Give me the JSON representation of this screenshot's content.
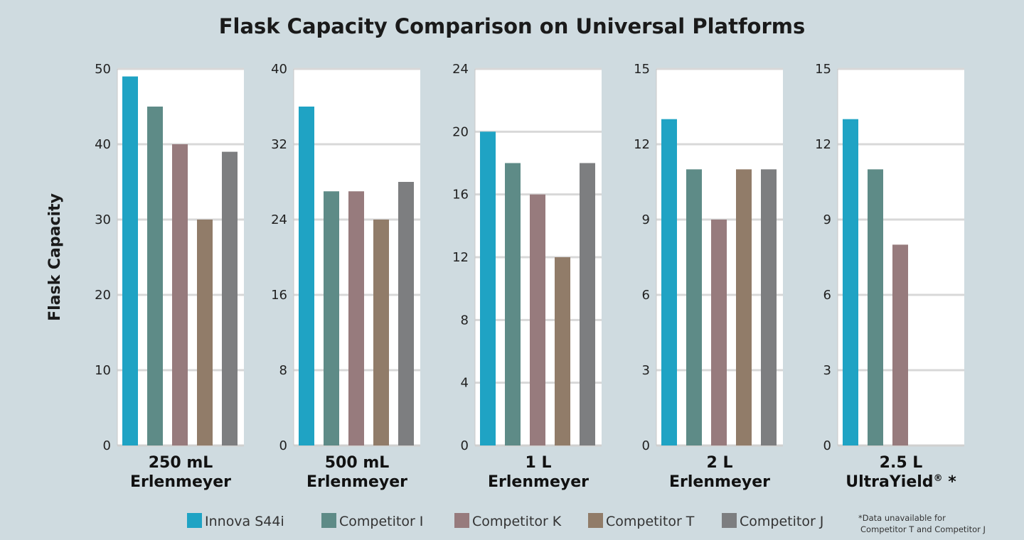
{
  "chart_data": {
    "type": "bar",
    "title": "Flask Capacity Comparison on Universal Platforms",
    "ylabel": "Flask Capacity",
    "series_names": [
      "Innova S44i",
      "Competitor I",
      "Competitor K",
      "Competitor T",
      "Competitor J"
    ],
    "colors": [
      "#1fa3c4",
      "#5e8b87",
      "#977b7d",
      "#917c69",
      "#7d7e80"
    ],
    "panels": [
      {
        "category_line1": "250 mL",
        "category_line2": "Erlenmeyer",
        "ylim": [
          0,
          50
        ],
        "ticks": [
          "0",
          "10",
          "20",
          "30",
          "40",
          "50"
        ],
        "values": [
          49,
          45,
          40,
          30,
          39
        ]
      },
      {
        "category_line1": "500 mL",
        "category_line2": "Erlenmeyer",
        "ylim": [
          0,
          40
        ],
        "ticks": [
          "0",
          "8",
          "16",
          "24",
          "32",
          "40"
        ],
        "values": [
          36,
          27,
          27,
          24,
          28
        ]
      },
      {
        "category_line1": "1 L",
        "category_line2": "Erlenmeyer",
        "ylim": [
          0,
          24
        ],
        "ticks": [
          "0",
          "4",
          "8",
          "12",
          "16",
          "20",
          "24"
        ],
        "values": [
          20,
          18,
          16,
          12,
          18
        ]
      },
      {
        "category_line1": "2 L",
        "category_line2": "Erlenmeyer",
        "ylim": [
          0,
          15
        ],
        "ticks": [
          "0",
          "3",
          "6",
          "9",
          "12",
          "15"
        ],
        "values": [
          13,
          11,
          9,
          11,
          11
        ]
      },
      {
        "category_line1": "2.5 L",
        "category_line2": "UltraYield",
        "category_mark": "®",
        "category_asterisk": " *",
        "ylim": [
          0,
          15
        ],
        "ticks": [
          "0",
          "3",
          "6",
          "9",
          "12",
          "15"
        ],
        "values": [
          13,
          11,
          8,
          null,
          null
        ]
      }
    ],
    "footnote_line1": "*Data unavailable for",
    "footnote_line2": "Competitor T and Competitor J"
  }
}
